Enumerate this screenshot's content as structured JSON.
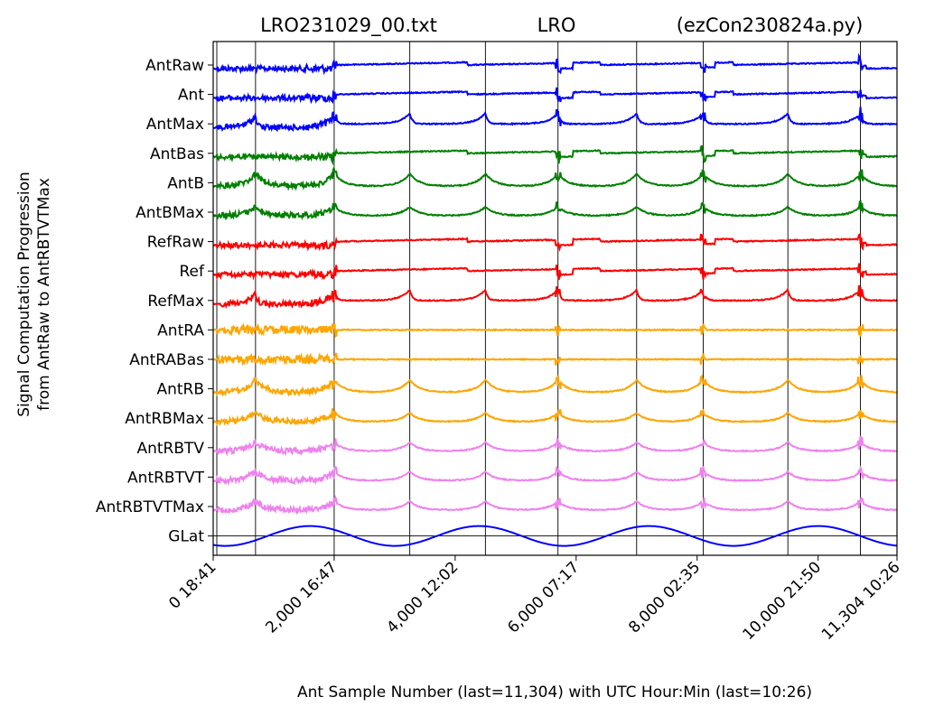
{
  "chart_data": {
    "type": "line",
    "title_left": "LRO231029_00.txt",
    "title_center": "LRO",
    "title_right": "(ezCon230824a.py)",
    "xlabel": "Ant Sample Number (last=11,304) with UTC Hour:Min (last=10:26)",
    "ylabel_line1": "Signal Computation Progression",
    "ylabel_line2": "from AntRaw to AntRBTVTMax",
    "xlim": [
      0,
      11304
    ],
    "x_ticks": [
      {
        "value": 0,
        "label": "0  18:41"
      },
      {
        "value": 2000,
        "label": "2,000  16:47"
      },
      {
        "value": 4000,
        "label": "4,000  12:02"
      },
      {
        "value": 6000,
        "label": "6,000  07:17"
      },
      {
        "value": 8000,
        "label": "8,000  02:35"
      },
      {
        "value": 10000,
        "label": "10,000  21:50"
      },
      {
        "value": 11304,
        "label": "11,304  10:26"
      }
    ],
    "vertical_lines": [
      60,
      700,
      2000,
      3250,
      4500,
      5700,
      7000,
      8100,
      9500,
      10700
    ],
    "gaps": [
      2000,
      5700,
      8100,
      10700
    ],
    "series": [
      {
        "name": "AntRaw",
        "color": "#0000ff"
      },
      {
        "name": "Ant",
        "color": "#0000ff"
      },
      {
        "name": "AntMax",
        "color": "#0000ff"
      },
      {
        "name": "AntBas",
        "color": "#008000"
      },
      {
        "name": "AntB",
        "color": "#008000"
      },
      {
        "name": "AntBMax",
        "color": "#008000"
      },
      {
        "name": "RefRaw",
        "color": "#ff0000"
      },
      {
        "name": "Ref",
        "color": "#ff0000"
      },
      {
        "name": "RefMax",
        "color": "#ff0000"
      },
      {
        "name": "AntRA",
        "color": "#ffa500"
      },
      {
        "name": "AntRABas",
        "color": "#ffa500"
      },
      {
        "name": "AntRB",
        "color": "#ffa500"
      },
      {
        "name": "AntRBMax",
        "color": "#ffa500"
      },
      {
        "name": "AntRBTV",
        "color": "#ee82ee"
      },
      {
        "name": "AntRBTVT",
        "color": "#ee82ee"
      },
      {
        "name": "AntRBTVTMax",
        "color": "#ee82ee"
      },
      {
        "name": "GLat",
        "color": "#0000ff"
      }
    ],
    "grid": false,
    "legend": "none"
  }
}
